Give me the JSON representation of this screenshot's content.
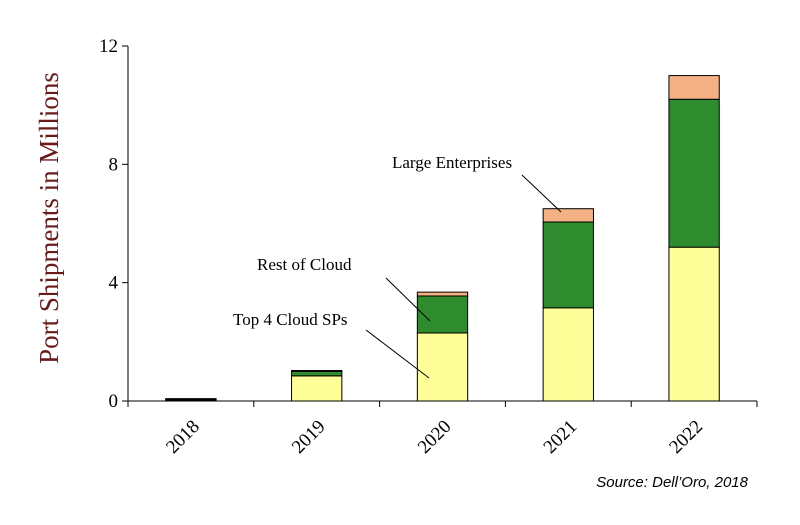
{
  "chart_data": {
    "type": "bar",
    "stacked": true,
    "categories": [
      "2018",
      "2019",
      "2020",
      "2021",
      "2022"
    ],
    "series": [
      {
        "name": "Top 4 Cloud SPs",
        "values": [
          0.03,
          0.85,
          2.3,
          3.15,
          5.2
        ],
        "color": "#ffff99"
      },
      {
        "name": "Rest of Cloud",
        "values": [
          0.03,
          0.15,
          1.25,
          2.9,
          5.0
        ],
        "color": "#2e8b2e"
      },
      {
        "name": "Large Enterprises",
        "values": [
          0.02,
          0.03,
          0.13,
          0.45,
          0.8
        ],
        "color": "#f4b183"
      }
    ],
    "ylabel": "Port Shipments in Millions",
    "ylim": [
      0,
      12
    ],
    "yticks": [
      "0",
      "4",
      "8",
      "12"
    ],
    "grid": false,
    "annotations": [
      "Large Enterprises",
      "Rest of Cloud",
      "Top 4 Cloud SPs"
    ]
  },
  "source": "Source: Dell’Oro, 2018"
}
